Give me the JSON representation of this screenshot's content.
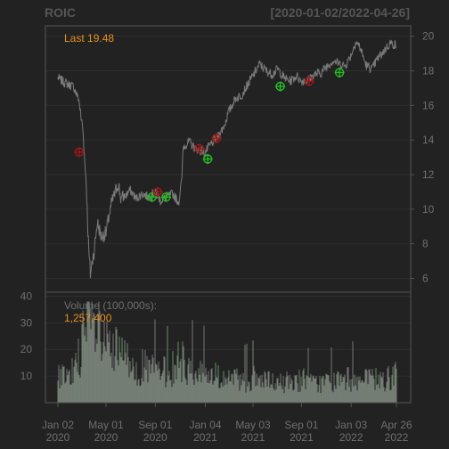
{
  "header": {
    "symbol": "ROIC",
    "range": "[2020-01-02/2022-04-26]"
  },
  "price_panel": {
    "last_label": "Last 19.48",
    "y_ticks": [
      "20",
      "18",
      "16",
      "14",
      "12",
      "10",
      "8",
      "6"
    ]
  },
  "volume_panel": {
    "label": "Volume (100,000s):",
    "value": "1,257,400",
    "y_ticks": [
      "40",
      "30",
      "20",
      "10"
    ]
  },
  "x_axis": [
    {
      "line1": "Jan 02",
      "line2": "2020"
    },
    {
      "line1": "May 01",
      "line2": "2020"
    },
    {
      "line1": "Sep 01",
      "line2": "2020"
    },
    {
      "line1": "Jan 04",
      "line2": "2021"
    },
    {
      "line1": "May 03",
      "line2": "2021"
    },
    {
      "line1": "Sep 01",
      "line2": "2021"
    },
    {
      "line1": "Jan 03",
      "line2": "2022"
    },
    {
      "line1": "Apr 26",
      "line2": "2022"
    }
  ],
  "colors": {
    "background": "#222222",
    "grid": "#2e2e2e",
    "price": "#7a7a7a",
    "buy": "#20c020",
    "sell": "#a01818",
    "accent": "#e8901a",
    "text": "#6f6f6f"
  },
  "chart_data": {
    "type": "line",
    "title": "ROIC",
    "subtitle": "[2020-01-02/2022-04-26]",
    "price": {
      "x": [
        "2020-01-02",
        "2020-01-20",
        "2020-02-10",
        "2020-02-24",
        "2020-03-05",
        "2020-03-12",
        "2020-03-18",
        "2020-03-23",
        "2020-04-01",
        "2020-04-10",
        "2020-04-20",
        "2020-05-01",
        "2020-05-15",
        "2020-06-01",
        "2020-06-08",
        "2020-06-20",
        "2020-07-01",
        "2020-07-15",
        "2020-08-01",
        "2020-08-15",
        "2020-09-01",
        "2020-09-15",
        "2020-10-01",
        "2020-10-15",
        "2020-10-30",
        "2020-11-06",
        "2020-11-10",
        "2020-11-25",
        "2020-12-10",
        "2021-01-04",
        "2021-01-20",
        "2021-02-05",
        "2021-02-20",
        "2021-03-05",
        "2021-03-20",
        "2021-04-05",
        "2021-04-20",
        "2021-05-03",
        "2021-05-20",
        "2021-06-05",
        "2021-06-20",
        "2021-07-05",
        "2021-07-20",
        "2021-08-05",
        "2021-08-20",
        "2021-09-01",
        "2021-09-20",
        "2021-10-05",
        "2021-10-20",
        "2021-11-05",
        "2021-11-20",
        "2021-12-05",
        "2021-12-20",
        "2022-01-03",
        "2022-01-15",
        "2022-01-25",
        "2022-02-10",
        "2022-02-25",
        "2022-03-10",
        "2022-03-25",
        "2022-04-10",
        "2022-04-26"
      ],
      "y": [
        17.6,
        17.3,
        17.1,
        16.3,
        14.5,
        12.0,
        8.5,
        6.2,
        7.5,
        9.2,
        8.4,
        8.6,
        10.3,
        11.5,
        10.6,
        10.8,
        11.1,
        10.6,
        10.9,
        10.7,
        11.0,
        10.5,
        10.7,
        10.9,
        10.4,
        11.5,
        13.6,
        13.9,
        13.5,
        13.3,
        13.8,
        14.2,
        14.8,
        15.7,
        16.4,
        16.6,
        17.2,
        17.7,
        18.4,
        18.0,
        17.8,
        18.1,
        17.6,
        17.4,
        17.7,
        17.4,
        17.5,
        17.8,
        17.9,
        18.3,
        18.6,
        18.4,
        18.3,
        18.9,
        19.7,
        19.4,
        18.3,
        18.1,
        18.7,
        19.1,
        19.6,
        19.48
      ]
    },
    "signals": [
      {
        "type": "sell",
        "x": "2020-02-24",
        "y": 13.3
      },
      {
        "type": "buy",
        "x": "2020-08-24",
        "y": 10.7
      },
      {
        "type": "sell",
        "x": "2020-09-07",
        "y": 11.0
      },
      {
        "type": "buy",
        "x": "2020-09-28",
        "y": 10.7
      },
      {
        "type": "sell",
        "x": "2020-12-20",
        "y": 13.5
      },
      {
        "type": "buy",
        "x": "2021-01-10",
        "y": 12.9
      },
      {
        "type": "sell",
        "x": "2021-02-01",
        "y": 14.1
      },
      {
        "type": "buy",
        "x": "2021-07-10",
        "y": 17.1
      },
      {
        "type": "sell",
        "x": "2021-09-20",
        "y": 17.4
      },
      {
        "type": "buy",
        "x": "2021-12-05",
        "y": 17.9
      }
    ],
    "volume": {
      "unit": "100,000s",
      "x": [
        "2020-01-02",
        "2020-02-01",
        "2020-03-01",
        "2020-03-20",
        "2020-04-10",
        "2020-05-01",
        "2020-06-01",
        "2020-07-01",
        "2020-08-01",
        "2020-09-01",
        "2020-10-01",
        "2020-11-01",
        "2020-12-01",
        "2021-01-04",
        "2021-02-01",
        "2021-03-01",
        "2021-04-01",
        "2021-05-03",
        "2021-06-01",
        "2021-07-01",
        "2021-08-01",
        "2021-09-01",
        "2021-10-01",
        "2021-11-01",
        "2021-12-01",
        "2022-01-03",
        "2022-02-01",
        "2022-03-01",
        "2022-04-01",
        "2022-04-26"
      ],
      "values": [
        10,
        9,
        22,
        30,
        25,
        20,
        18,
        15,
        13,
        12,
        11,
        16,
        12,
        11,
        10,
        9,
        8,
        9,
        8,
        7,
        8,
        9,
        7,
        8,
        8,
        9,
        8,
        9,
        8,
        12.574
      ]
    },
    "ylim_price": [
      5.2,
      20.6
    ],
    "ylim_volume": [
      0,
      41.5
    ],
    "xlim": [
      "2020-01-02",
      "2022-04-26"
    ]
  }
}
